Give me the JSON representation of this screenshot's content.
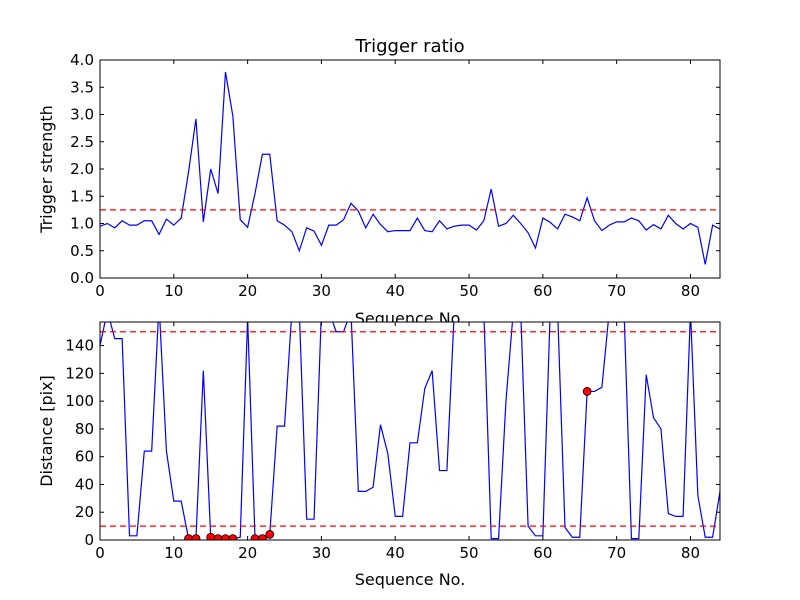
{
  "figure": {
    "background": "#ffffff"
  },
  "chart_data": [
    {
      "type": "line",
      "title": "Trigger ratio",
      "xlabel": "Sequence No.",
      "ylabel": "Trigger strength",
      "xlim": [
        0,
        84
      ],
      "ylim": [
        0,
        4.0
      ],
      "xticks": [
        0,
        10,
        20,
        30,
        40,
        50,
        60,
        70,
        80
      ],
      "yticks": [
        0.0,
        0.5,
        1.0,
        1.5,
        2.0,
        2.5,
        3.0,
        3.5,
        4.0
      ],
      "ytick_format": 1,
      "grid": false,
      "series": [
        {
          "color": "#0000ff",
          "x": [
            0,
            1,
            2,
            3,
            4,
            5,
            6,
            7,
            8,
            9,
            10,
            11,
            12,
            13,
            14,
            15,
            16,
            17,
            18,
            19,
            20,
            21,
            22,
            23,
            24,
            25,
            26,
            27,
            28,
            29,
            30,
            31,
            32,
            33,
            34,
            35,
            36,
            37,
            38,
            39,
            40,
            41,
            42,
            43,
            44,
            45,
            46,
            47,
            48,
            49,
            50,
            51,
            52,
            53,
            54,
            55,
            56,
            57,
            58,
            59,
            60,
            61,
            62,
            63,
            64,
            65,
            66,
            67,
            68,
            69,
            70,
            71,
            72,
            73,
            74,
            75,
            76,
            77,
            78,
            79,
            80,
            81,
            82,
            83,
            84
          ],
          "y": [
            0.95,
            1.0,
            0.92,
            1.05,
            0.97,
            0.97,
            1.05,
            1.05,
            0.8,
            1.08,
            0.97,
            1.1,
            1.95,
            2.92,
            1.03,
            2.0,
            1.55,
            3.78,
            2.97,
            1.07,
            0.93,
            1.55,
            2.27,
            2.27,
            1.05,
            0.97,
            0.85,
            0.5,
            0.92,
            0.86,
            0.6,
            0.97,
            0.97,
            1.07,
            1.37,
            1.23,
            0.92,
            1.17,
            0.98,
            0.85,
            0.87,
            0.87,
            0.87,
            1.1,
            0.87,
            0.85,
            1.05,
            0.9,
            0.95,
            0.97,
            0.97,
            0.88,
            1.05,
            1.63,
            0.95,
            1.0,
            1.15,
            1.0,
            0.83,
            0.55,
            1.1,
            1.02,
            0.9,
            1.17,
            1.12,
            1.05,
            1.47,
            1.05,
            0.87,
            0.97,
            1.03,
            1.03,
            1.1,
            1.05,
            0.88,
            0.98,
            0.9,
            1.15,
            1.0,
            0.9,
            1.0,
            0.93,
            0.25,
            0.97,
            0.9
          ]
        }
      ],
      "hlines": [
        {
          "y": 1.25,
          "color": "#ff0000",
          "style": "dashed"
        }
      ],
      "markers": []
    },
    {
      "type": "line",
      "title": "",
      "xlabel": "Sequence No.",
      "ylabel": "Distance [pix]",
      "xlim": [
        0,
        84
      ],
      "ylim": [
        0,
        157
      ],
      "xticks": [
        0,
        10,
        20,
        30,
        40,
        50,
        60,
        70,
        80
      ],
      "yticks": [
        0,
        20,
        40,
        60,
        80,
        100,
        120,
        140
      ],
      "ytick_format": 0,
      "grid": false,
      "series": [
        {
          "color": "#0000ff",
          "x": [
            0,
            1,
            2,
            3,
            4,
            5,
            6,
            7,
            8,
            9,
            10,
            11,
            12,
            13,
            14,
            15,
            16,
            17,
            18,
            19,
            20,
            21,
            22,
            23,
            24,
            25,
            26,
            27,
            28,
            29,
            30,
            31,
            32,
            33,
            34,
            35,
            36,
            37,
            38,
            39,
            40,
            41,
            42,
            43,
            44,
            45,
            46,
            47,
            48,
            49,
            50,
            51,
            52,
            53,
            54,
            55,
            56,
            57,
            58,
            59,
            60,
            61,
            62,
            63,
            64,
            65,
            66,
            67,
            68,
            69,
            70,
            71,
            72,
            73,
            74,
            75,
            76,
            77,
            78,
            79,
            80,
            81,
            82,
            83,
            84
          ],
          "y": [
            140,
            165,
            145,
            145,
            3,
            3,
            64,
            64,
            170,
            64,
            28,
            28,
            1,
            1,
            122,
            2,
            1,
            1,
            1,
            2,
            160,
            1,
            1,
            4,
            82,
            82,
            165,
            165,
            15,
            15,
            165,
            165,
            150,
            150,
            165,
            35,
            35,
            38,
            83,
            62,
            17,
            17,
            70,
            70,
            109,
            122,
            50,
            50,
            165,
            165,
            165,
            165,
            165,
            1,
            1,
            100,
            165,
            165,
            10,
            3,
            3,
            165,
            165,
            9,
            2,
            2,
            107,
            107,
            110,
            165,
            165,
            165,
            1,
            1,
            119,
            88,
            80,
            19,
            17,
            17,
            165,
            32,
            2,
            2,
            35
          ]
        }
      ],
      "hlines": [
        {
          "y": 150,
          "color": "#ff0000",
          "style": "dashed"
        },
        {
          "y": 10,
          "color": "#ff0000",
          "style": "dashed"
        }
      ],
      "markers": {
        "color": "#ff0000",
        "points": [
          {
            "x": 12,
            "y": 1
          },
          {
            "x": 13,
            "y": 1
          },
          {
            "x": 15,
            "y": 2
          },
          {
            "x": 16,
            "y": 1
          },
          {
            "x": 17,
            "y": 1
          },
          {
            "x": 18,
            "y": 1
          },
          {
            "x": 21,
            "y": 1
          },
          {
            "x": 22,
            "y": 1
          },
          {
            "x": 23,
            "y": 4
          },
          {
            "x": 66,
            "y": 107
          }
        ]
      }
    }
  ]
}
